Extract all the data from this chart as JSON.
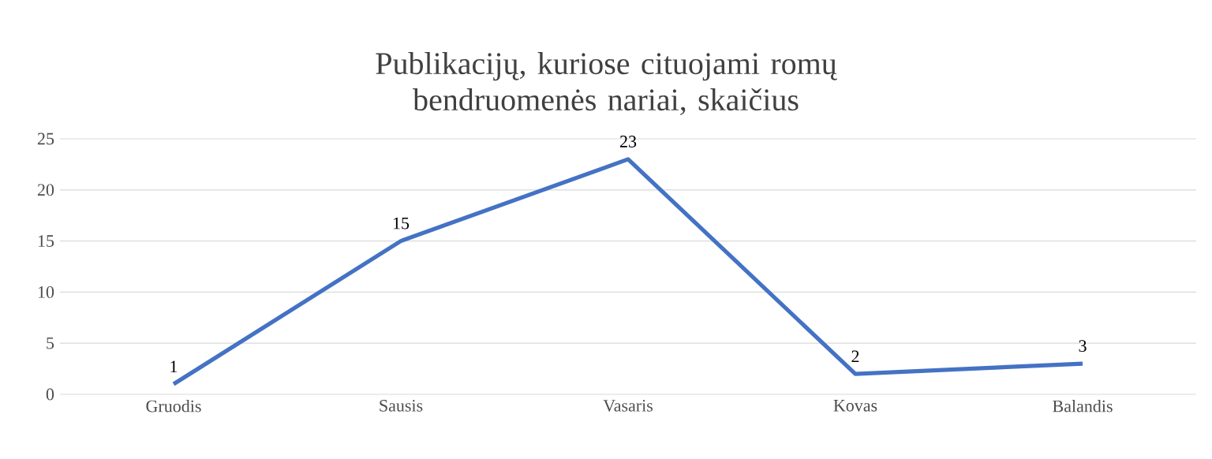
{
  "chart_data": {
    "type": "line",
    "title": "Publikacijų, kuriose cituojami romų bendruomenės nariai, skaičius",
    "categories": [
      "Gruodis",
      "Sausis",
      "Vasaris",
      "Kovas",
      "Balandis"
    ],
    "values": [
      1,
      15,
      23,
      2,
      3
    ],
    "color": "#4472c4",
    "ylim": [
      0,
      25
    ],
    "yticks": [
      0,
      5,
      10,
      15,
      20,
      25
    ],
    "grid": "y",
    "data_labels": true
  }
}
